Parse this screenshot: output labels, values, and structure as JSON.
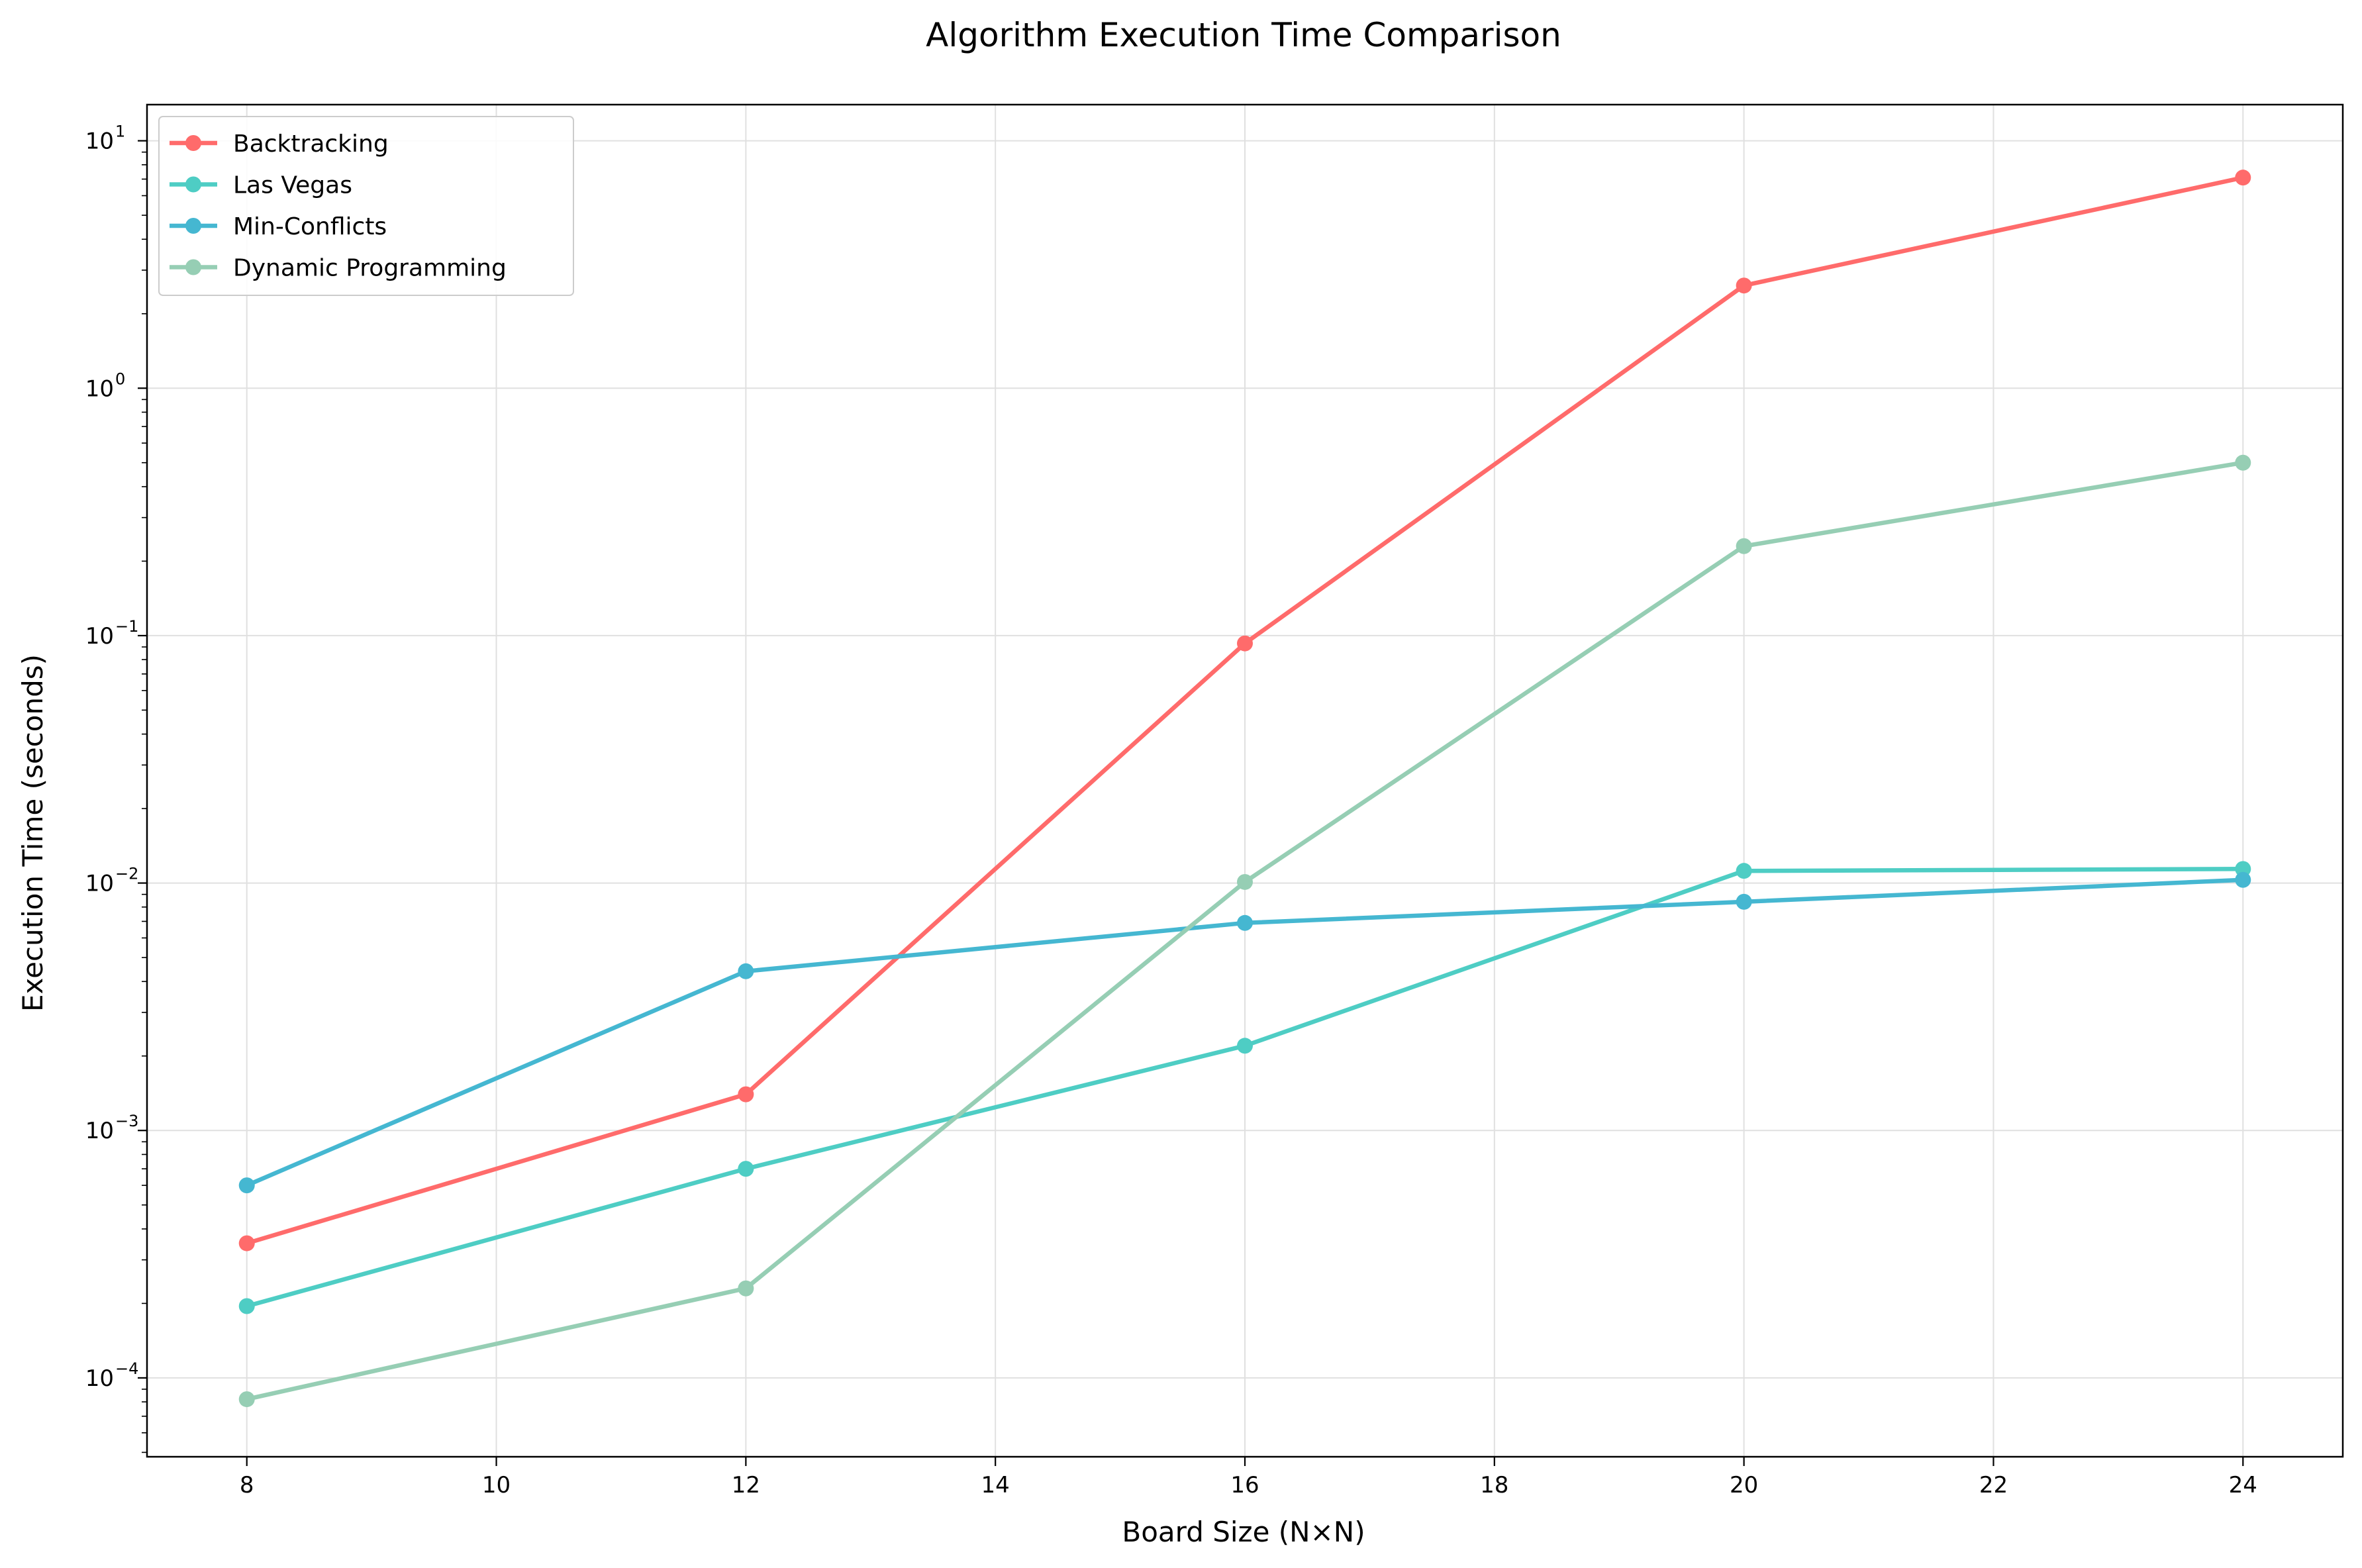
{
  "chart_data": {
    "type": "line",
    "title": "Algorithm Execution Time Comparison",
    "xlabel": "Board Size (N×N)",
    "ylabel": "Execution Time (seconds)",
    "yscale": "log",
    "xlim": [
      7.2,
      24.8
    ],
    "ylim": [
      4.8e-05,
      14
    ],
    "x_ticks": [
      8,
      10,
      12,
      14,
      16,
      18,
      20,
      22,
      24
    ],
    "y_ticks": [
      {
        "value": 0.0001,
        "base": "10",
        "exp": "−4"
      },
      {
        "value": 0.001,
        "base": "10",
        "exp": "−3"
      },
      {
        "value": 0.01,
        "base": "10",
        "exp": "−2"
      },
      {
        "value": 0.1,
        "base": "10",
        "exp": "−1"
      },
      {
        "value": 1,
        "base": "10",
        "exp": "0"
      },
      {
        "value": 10,
        "base": "10",
        "exp": "1"
      }
    ],
    "grid": true,
    "legend_position": "top-left",
    "x": [
      8,
      12,
      16,
      20,
      24
    ],
    "series": [
      {
        "name": "Backtracking",
        "color": "#ff6b6b",
        "values": [
          0.00035,
          0.0014,
          0.093,
          2.6,
          7.1
        ]
      },
      {
        "name": "Las Vegas",
        "color": "#4ecdc4",
        "values": [
          0.000195,
          0.0007,
          0.0022,
          0.0112,
          0.0114
        ]
      },
      {
        "name": "Min-Conflicts",
        "color": "#45b7d1",
        "values": [
          0.0006,
          0.0044,
          0.0069,
          0.0084,
          0.0103
        ]
      },
      {
        "name": "Dynamic Programming",
        "color": "#96ceb4",
        "values": [
          8.2e-05,
          0.00023,
          0.0101,
          0.23,
          0.5
        ]
      }
    ]
  }
}
